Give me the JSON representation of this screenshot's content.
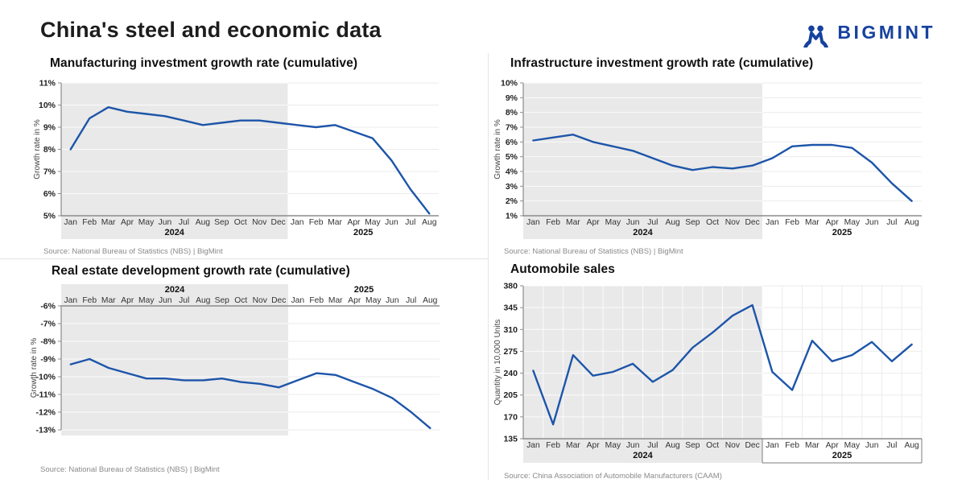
{
  "page": {
    "title": "China's steel and economic data"
  },
  "logo": {
    "text": "BIGMINT",
    "color": "#16419f"
  },
  "theme": {
    "line_color": "#1d55a9",
    "shade_color": "#e9e9e9",
    "axis_color": "#8c8c8c",
    "grid_on_white": "#ebebeb",
    "grid_on_shade": "rgba(255,255,255,0.8)"
  },
  "chart_data": [
    {
      "type": "line",
      "title": "Manufacturing investment growth rate (cumulative)",
      "ylabel": "Growth rate in %",
      "source": "Source: National Bureau of Statistics (NBS) |  BigMint",
      "years": [
        "2024",
        "2025"
      ],
      "categories": [
        "Jan",
        "Feb",
        "Mar",
        "Apr",
        "May",
        "Jun",
        "Jul",
        "Aug",
        "Sep",
        "Oct",
        "Nov",
        "Dec",
        "Jan",
        "Feb",
        "Mar",
        "Apr",
        "May",
        "Jun",
        "Jul",
        "Aug"
      ],
      "values": [
        8.0,
        9.4,
        9.9,
        9.7,
        9.6,
        9.5,
        9.3,
        9.1,
        9.2,
        9.3,
        9.3,
        9.2,
        9.1,
        9.0,
        9.1,
        8.8,
        8.5,
        7.5,
        6.2,
        5.1
      ],
      "ylim": [
        5,
        11
      ],
      "yticks": [
        5,
        6,
        7,
        8,
        9,
        10,
        11
      ],
      "tick_suffix": "%",
      "shaded_region": "2024",
      "grid": "horizontal",
      "legend": "none"
    },
    {
      "type": "line",
      "title": "Infrastructure investment growth rate (cumulative)",
      "ylabel": "Growth rate in %",
      "source": "Source: National Bureau of Statistics (NBS) |  BigMint",
      "years": [
        "2024",
        "2025"
      ],
      "categories": [
        "Jan",
        "Feb",
        "Mar",
        "Apr",
        "May",
        "Jun",
        "Jul",
        "Aug",
        "Sep",
        "Oct",
        "Nov",
        "Dec",
        "Jan",
        "Feb",
        "Mar",
        "Apr",
        "May",
        "Jun",
        "Jul",
        "Aug"
      ],
      "values": [
        6.1,
        6.3,
        6.5,
        6.0,
        5.7,
        5.4,
        4.9,
        4.4,
        4.1,
        4.3,
        4.2,
        4.4,
        4.9,
        5.7,
        5.8,
        5.8,
        5.6,
        4.6,
        3.2,
        2.0
      ],
      "ylim": [
        1,
        10
      ],
      "yticks": [
        1,
        2,
        3,
        4,
        5,
        6,
        7,
        8,
        9,
        10
      ],
      "tick_suffix": "%",
      "shaded_region": "2024",
      "grid": "horizontal",
      "legend": "none"
    },
    {
      "type": "line",
      "title": "Real estate development growth rate (cumulative)",
      "ylabel": "Growth rate in %",
      "source": "Source: National Bureau of Statistics (NBS) |  BigMint",
      "years": [
        "2024",
        "2025"
      ],
      "categories": [
        "Jan",
        "Feb",
        "Mar",
        "Apr",
        "May",
        "Jun",
        "Jul",
        "Aug",
        "Sep",
        "Oct",
        "Nov",
        "Dec",
        "Jan",
        "Feb",
        "Mar",
        "Apr",
        "May",
        "Jun",
        "Jul",
        "Aug"
      ],
      "values": [
        -9.3,
        -9.0,
        -9.5,
        -9.8,
        -10.1,
        -10.1,
        -10.2,
        -10.2,
        -10.1,
        -10.3,
        -10.4,
        -10.6,
        -10.2,
        -9.8,
        -9.9,
        -10.3,
        -10.7,
        -11.2,
        -12.0,
        -12.9
      ],
      "ylim": [
        -13,
        -6
      ],
      "yticks": [
        -6,
        -7,
        -8,
        -9,
        -10,
        -11,
        -12,
        -13
      ],
      "tick_suffix": "%",
      "shaded_region": "2024",
      "grid": "horizontal",
      "x_labels_position": "top",
      "legend": "none"
    },
    {
      "type": "line",
      "title": "Automobile sales",
      "ylabel": "Quantity in 10,000 Units",
      "source": "Source: China Association of Automobile Manufacturers (CAAM)",
      "years": [
        "2024",
        "2025"
      ],
      "categories": [
        "Jan",
        "Feb",
        "Mar",
        "Apr",
        "May",
        "Jun",
        "Jul",
        "Aug",
        "Sep",
        "Oct",
        "Nov",
        "Dec",
        "Jan",
        "Feb",
        "Mar",
        "Apr",
        "May",
        "Jun",
        "Jul",
        "Aug"
      ],
      "values": [
        244,
        158,
        269,
        236,
        242,
        255,
        226,
        245,
        281,
        305,
        332,
        349,
        242,
        213,
        292,
        259,
        269,
        290,
        259,
        286
      ],
      "ylim": [
        135,
        380
      ],
      "yticks": [
        135,
        170,
        205,
        240,
        275,
        310,
        345,
        380
      ],
      "tick_suffix": "",
      "shaded_region": "2024",
      "grid": "both",
      "boxed_2025_band": true,
      "legend": "none"
    }
  ]
}
